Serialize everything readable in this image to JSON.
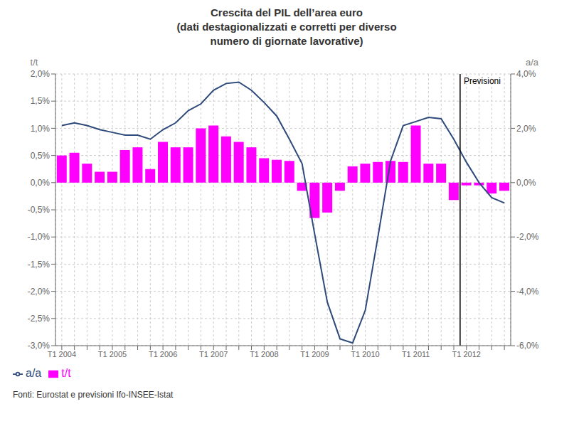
{
  "chart_data": {
    "type": "bar",
    "title": "Crescita del PIL dell’area euro\n(dati destagionalizzati e corretti per diverso\nnumero di giornate lavorative)",
    "footnote": "Fonti: Eurostat e previsioni Ifo-INSEE-Istat",
    "ylabel": "t/t",
    "y2label": "a/a",
    "categories": [
      "T1 2004",
      null,
      null,
      null,
      "T1 2005",
      null,
      null,
      null,
      "T1 2006",
      null,
      null,
      null,
      "T1 2007",
      null,
      null,
      null,
      "T1 2008",
      null,
      null,
      null,
      "T1 2009",
      null,
      null,
      null,
      "T1 2010",
      null,
      null,
      null,
      "T1 2011",
      null,
      null,
      null,
      "T1 2012",
      null,
      null,
      null
    ],
    "series": [
      {
        "name": "t/t",
        "type": "bar",
        "color": "#FF00FF",
        "values": [
          0.5,
          0.55,
          0.35,
          0.2,
          0.2,
          0.6,
          0.65,
          0.25,
          0.75,
          0.65,
          0.65,
          1.0,
          1.05,
          0.85,
          0.75,
          0.65,
          0.45,
          0.42,
          0.4,
          -0.15,
          -0.65,
          -0.55,
          -0.15,
          0.3,
          0.35,
          0.38,
          0.4,
          0.38,
          1.05,
          0.35,
          0.35,
          -0.32,
          -0.05,
          -0.05,
          -0.2,
          -0.15
        ]
      },
      {
        "name": "a/a",
        "type": "line",
        "axis": "y2",
        "color": "#2E4A7A",
        "values": [
          2.1,
          2.2,
          2.1,
          1.95,
          1.85,
          1.75,
          1.75,
          1.6,
          1.95,
          2.2,
          2.65,
          2.9,
          3.4,
          3.65,
          3.7,
          3.4,
          2.95,
          2.45,
          1.6,
          0.7,
          -1.9,
          -4.4,
          -5.75,
          -5.9,
          -4.7,
          -2.0,
          0.8,
          2.1,
          2.25,
          2.4,
          2.35,
          1.6,
          0.75,
          0.0,
          -0.55,
          -0.75
        ]
      }
    ],
    "ylim": [
      -3.0,
      2.0
    ],
    "yticks": [
      {
        "value": -3.0,
        "label": "-3,0%"
      },
      {
        "value": -2.5,
        "label": "-2,5%"
      },
      {
        "value": -2.0,
        "label": "-2,0%"
      },
      {
        "value": -1.5,
        "label": "-1,5%"
      },
      {
        "value": -1.0,
        "label": "-1,0%"
      },
      {
        "value": -0.5,
        "label": "-0,5%"
      },
      {
        "value": 0.0,
        "label": "0,0%"
      },
      {
        "value": 0.5,
        "label": "0,5%"
      },
      {
        "value": 1.0,
        "label": "1,0%"
      },
      {
        "value": 1.5,
        "label": "1,5%"
      },
      {
        "value": 2.0,
        "label": "2,0%"
      }
    ],
    "y2lim": [
      -6.0,
      4.0
    ],
    "y2ticks": [
      {
        "value": -6.0,
        "label": "-6,0%"
      },
      {
        "value": -4.0,
        "label": "-4,0%"
      },
      {
        "value": -2.0,
        "label": "-2,0%"
      },
      {
        "value": 0.0,
        "label": "0,0%"
      },
      {
        "value": 2.0,
        "label": "2,0%"
      },
      {
        "value": 4.0,
        "label": "4,0%"
      }
    ],
    "grid": true,
    "legend": "lower left",
    "annotations": [
      {
        "text": "Previsioni",
        "x": "T1 2012"
      }
    ]
  }
}
